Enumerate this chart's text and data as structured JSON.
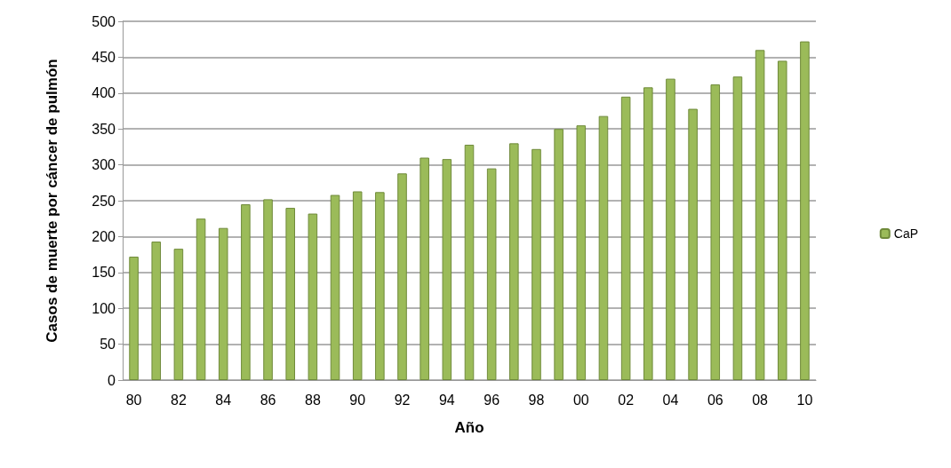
{
  "chart_data": {
    "type": "bar",
    "xlabel": "Año",
    "ylabel": "Casos de muerte por cáncer de pulmón",
    "categories": [
      "80",
      null,
      "82",
      null,
      "84",
      null,
      "86",
      null,
      "88",
      null,
      "90",
      null,
      "92",
      null,
      "94",
      null,
      "96",
      null,
      "98",
      null,
      "00",
      null,
      "02",
      null,
      "04",
      null,
      "06",
      null,
      "08",
      null,
      "10"
    ],
    "series": [
      {
        "name": "CaP",
        "color": "#9bbb59",
        "values": [
          172,
          193,
          183,
          225,
          212,
          245,
          252,
          240,
          232,
          258,
          263,
          262,
          288,
          310,
          308,
          328,
          295,
          330,
          322,
          350,
          355,
          368,
          395,
          408,
          420,
          378,
          412,
          423,
          460,
          445,
          472
        ]
      }
    ],
    "ylim": [
      0,
      500
    ],
    "yticks": [
      0,
      50,
      100,
      150,
      200,
      250,
      300,
      350,
      400,
      450,
      500
    ],
    "grid": "y",
    "legend": "right"
  }
}
